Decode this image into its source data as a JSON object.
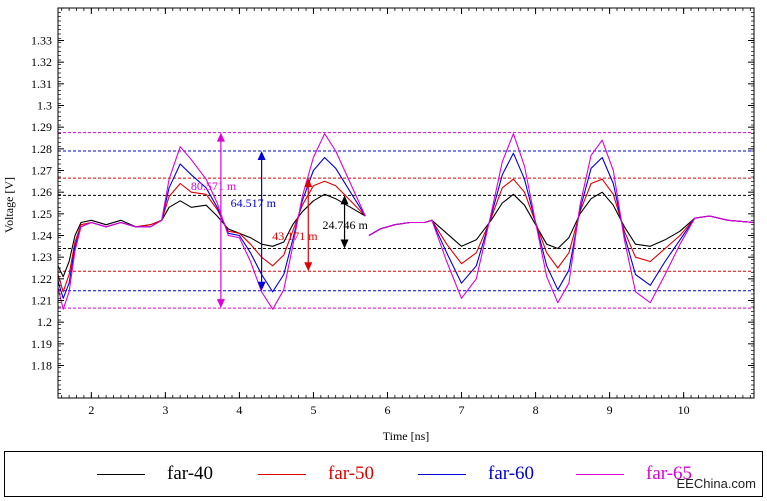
{
  "chart_data": {
    "type": "line",
    "title": "",
    "xlabel": "Time [ns]",
    "ylabel": "Voltage [V]",
    "xlim": [
      1.55,
      10.95
    ],
    "ylim": [
      1.165,
      1.345
    ],
    "xticks": [
      2,
      3,
      4,
      5,
      6,
      7,
      8,
      9,
      10
    ],
    "yticks": [
      1.18,
      1.19,
      1.2,
      1.21,
      1.22,
      1.23,
      1.24,
      1.25,
      1.26,
      1.27,
      1.28,
      1.29,
      1.3,
      1.31,
      1.32,
      1.33
    ],
    "series": [
      {
        "name": "far-40",
        "color": "#000000",
        "x": [
          1.55,
          1.62,
          1.7,
          1.78,
          1.86,
          2.0,
          2.2,
          2.4,
          2.6,
          2.8,
          2.95,
          3.05,
          3.2,
          3.35,
          3.55,
          3.7,
          3.85,
          4.0,
          4.15,
          4.3,
          4.45,
          4.6,
          4.72,
          4.85,
          5.0,
          5.15,
          5.3,
          5.5,
          5.7
        ],
        "y": [
          1.226,
          1.221,
          1.228,
          1.24,
          1.246,
          1.247,
          1.245,
          1.247,
          1.244,
          1.245,
          1.247,
          1.253,
          1.256,
          1.253,
          1.254,
          1.249,
          1.243,
          1.241,
          1.239,
          1.236,
          1.235,
          1.237,
          1.245,
          1.251,
          1.256,
          1.259,
          1.257,
          1.253,
          1.249
        ]
      },
      {
        "name": "far-50",
        "color": "#e00000",
        "x": [
          1.55,
          1.62,
          1.7,
          1.78,
          1.86,
          2.0,
          2.2,
          2.4,
          2.6,
          2.8,
          2.95,
          3.05,
          3.2,
          3.35,
          3.55,
          3.7,
          3.85,
          4.0,
          4.15,
          4.3,
          4.45,
          4.6,
          4.72,
          4.85,
          5.0,
          5.15,
          5.3,
          5.5,
          5.7
        ],
        "y": [
          1.222,
          1.214,
          1.222,
          1.237,
          1.245,
          1.246,
          1.244,
          1.246,
          1.244,
          1.245,
          1.247,
          1.258,
          1.264,
          1.26,
          1.259,
          1.252,
          1.242,
          1.241,
          1.236,
          1.23,
          1.226,
          1.231,
          1.242,
          1.254,
          1.263,
          1.265,
          1.263,
          1.256,
          1.249
        ]
      },
      {
        "name": "far-60",
        "color": "#0000d8",
        "x": [
          1.55,
          1.62,
          1.7,
          1.78,
          1.86,
          2.0,
          2.2,
          2.4,
          2.6,
          2.8,
          2.95,
          3.05,
          3.2,
          3.35,
          3.55,
          3.7,
          3.85,
          4.0,
          4.15,
          4.3,
          4.45,
          4.6,
          4.72,
          4.85,
          5.0,
          5.15,
          5.3,
          5.5,
          5.7
        ],
        "y": [
          1.219,
          1.211,
          1.218,
          1.235,
          1.244,
          1.246,
          1.244,
          1.246,
          1.244,
          1.244,
          1.247,
          1.262,
          1.273,
          1.268,
          1.262,
          1.253,
          1.241,
          1.24,
          1.232,
          1.222,
          1.214,
          1.222,
          1.238,
          1.256,
          1.27,
          1.276,
          1.271,
          1.26,
          1.249
        ]
      },
      {
        "name": "far-65",
        "color": "#dd00dd",
        "x": [
          1.55,
          1.62,
          1.7,
          1.78,
          1.86,
          2.0,
          2.2,
          2.4,
          2.6,
          2.8,
          2.95,
          3.05,
          3.2,
          3.35,
          3.55,
          3.7,
          3.85,
          4.0,
          4.15,
          4.3,
          4.45,
          4.6,
          4.72,
          4.85,
          5.0,
          5.15,
          5.3,
          5.5,
          5.7
        ],
        "y": [
          1.216,
          1.206,
          1.214,
          1.233,
          1.244,
          1.246,
          1.244,
          1.246,
          1.244,
          1.244,
          1.247,
          1.266,
          1.281,
          1.275,
          1.266,
          1.255,
          1.24,
          1.239,
          1.228,
          1.214,
          1.206,
          1.215,
          1.235,
          1.258,
          1.276,
          1.287,
          1.279,
          1.264,
          1.249
        ]
      },
      {
        "name": "far-40",
        "color": "#000000",
        "x": [
          5.75,
          5.9,
          6.1,
          6.3,
          6.5,
          6.6,
          6.8,
          7.0,
          7.2,
          7.4,
          7.55,
          7.7,
          7.85,
          8.0,
          8.15,
          8.3,
          8.45,
          8.6,
          8.75,
          8.9,
          9.05,
          9.2,
          9.35,
          9.55,
          9.75,
          9.95,
          10.15,
          10.35,
          10.6,
          10.95
        ],
        "y": [
          1.24,
          1.243,
          1.245,
          1.246,
          1.246,
          1.247,
          1.241,
          1.235,
          1.238,
          1.247,
          1.255,
          1.259,
          1.254,
          1.245,
          1.236,
          1.234,
          1.239,
          1.25,
          1.257,
          1.26,
          1.254,
          1.244,
          1.236,
          1.235,
          1.238,
          1.242,
          1.248,
          1.249,
          1.247,
          1.246
        ]
      },
      {
        "name": "far-50",
        "color": "#e00000",
        "x": [
          5.75,
          5.9,
          6.1,
          6.3,
          6.5,
          6.6,
          6.8,
          7.0,
          7.2,
          7.4,
          7.55,
          7.7,
          7.85,
          8.0,
          8.15,
          8.3,
          8.45,
          8.6,
          8.75,
          8.9,
          9.05,
          9.2,
          9.35,
          9.55,
          9.75,
          9.95,
          10.15,
          10.35,
          10.6,
          10.95
        ],
        "y": [
          1.24,
          1.243,
          1.245,
          1.246,
          1.246,
          1.247,
          1.236,
          1.227,
          1.232,
          1.248,
          1.262,
          1.266,
          1.26,
          1.246,
          1.232,
          1.225,
          1.232,
          1.251,
          1.264,
          1.266,
          1.259,
          1.242,
          1.23,
          1.228,
          1.234,
          1.24,
          1.248,
          1.249,
          1.247,
          1.246
        ]
      },
      {
        "name": "far-60",
        "color": "#0000d8",
        "x": [
          5.75,
          5.9,
          6.1,
          6.3,
          6.5,
          6.6,
          6.8,
          7.0,
          7.2,
          7.4,
          7.55,
          7.7,
          7.85,
          8.0,
          8.15,
          8.3,
          8.45,
          8.6,
          8.75,
          8.9,
          9.05,
          9.2,
          9.35,
          9.55,
          9.75,
          9.95,
          10.15,
          10.35,
          10.6,
          10.95
        ],
        "y": [
          1.24,
          1.243,
          1.245,
          1.246,
          1.246,
          1.247,
          1.232,
          1.218,
          1.226,
          1.249,
          1.268,
          1.278,
          1.266,
          1.246,
          1.226,
          1.215,
          1.224,
          1.252,
          1.271,
          1.276,
          1.264,
          1.24,
          1.222,
          1.217,
          1.228,
          1.238,
          1.248,
          1.249,
          1.247,
          1.246
        ]
      },
      {
        "name": "far-65",
        "color": "#dd00dd",
        "x": [
          5.75,
          5.9,
          6.1,
          6.3,
          6.5,
          6.6,
          6.8,
          7.0,
          7.2,
          7.4,
          7.55,
          7.7,
          7.85,
          8.0,
          8.15,
          8.3,
          8.45,
          8.6,
          8.75,
          8.9,
          9.05,
          9.2,
          9.35,
          9.55,
          9.75,
          9.95,
          10.15,
          10.35,
          10.6,
          10.95
        ],
        "y": [
          1.24,
          1.243,
          1.245,
          1.246,
          1.246,
          1.247,
          1.228,
          1.211,
          1.22,
          1.25,
          1.274,
          1.287,
          1.272,
          1.246,
          1.221,
          1.209,
          1.218,
          1.254,
          1.277,
          1.284,
          1.27,
          1.238,
          1.214,
          1.209,
          1.222,
          1.236,
          1.248,
          1.249,
          1.247,
          1.246
        ]
      }
    ],
    "reference_lines": [
      {
        "y": 1.2875,
        "color": "#dd00dd"
      },
      {
        "y": 1.279,
        "color": "#0000d8"
      },
      {
        "y": 1.2665,
        "color": "#e00000"
      },
      {
        "y": 1.2585,
        "color": "#000000"
      },
      {
        "y": 1.234,
        "color": "#000000"
      },
      {
        "y": 1.2235,
        "color": "#e00000"
      },
      {
        "y": 1.2145,
        "color": "#0000d8"
      },
      {
        "y": 1.2065,
        "color": "#dd00dd"
      }
    ],
    "annotations": [
      {
        "text": "80.571 m",
        "color": "#dd00dd",
        "x": 3.75,
        "y_top": 1.2875,
        "y_bottom": 1.2065
      },
      {
        "text": "64.517 m",
        "color": "#0000d8",
        "x": 4.3,
        "y_top": 1.279,
        "y_bottom": 1.2145
      },
      {
        "text": "43.171 m",
        "color": "#e00000",
        "x": 4.93,
        "y_top": 1.2665,
        "y_bottom": 1.2235
      },
      {
        "text": "24.746 m",
        "color": "#000000",
        "x": 5.42,
        "y_top": 1.2585,
        "y_bottom": 1.234
      }
    ],
    "legend": [
      {
        "name": "far-40",
        "color": "#000000"
      },
      {
        "name": "far-50",
        "color": "#e00000"
      },
      {
        "name": "far-60",
        "color": "#0000d8"
      },
      {
        "name": "far-65",
        "color": "#dd00dd"
      }
    ],
    "grid": false,
    "legend_placement": "bottom"
  },
  "watermark": "EEChina.com"
}
